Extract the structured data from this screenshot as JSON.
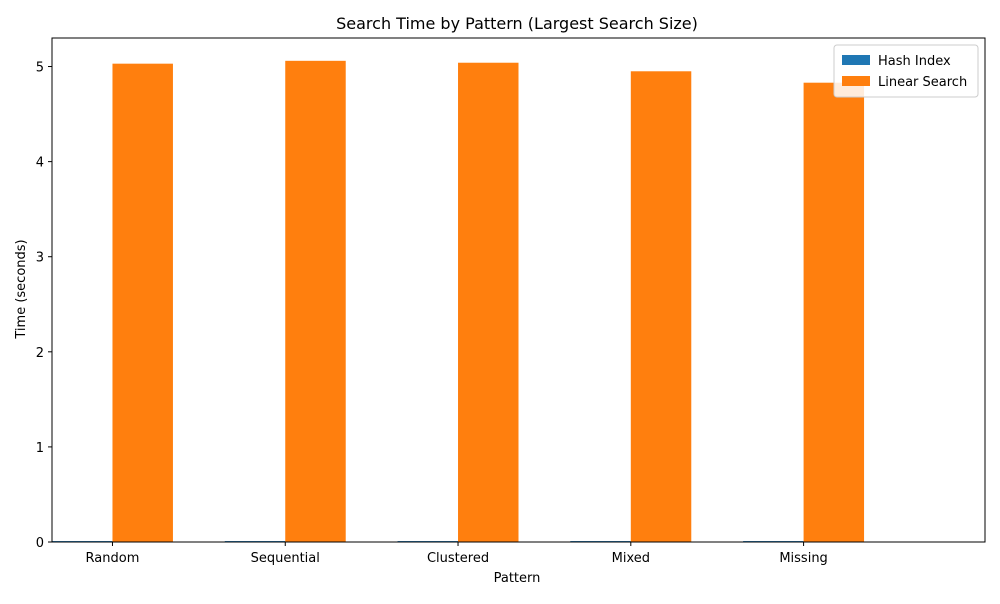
{
  "chart_data": {
    "type": "bar",
    "title": "Search Time by Pattern (Largest Search Size)",
    "xlabel": "Pattern",
    "ylabel": "Time (seconds)",
    "categories": [
      "Random",
      "Sequential",
      "Clustered",
      "Mixed",
      "Missing"
    ],
    "series": [
      {
        "name": "Hash Index",
        "color": "#1f77b4",
        "values": [
          0.01,
          0.01,
          0.01,
          0.01,
          0.01
        ]
      },
      {
        "name": "Linear Search",
        "color": "#ff7f0e",
        "values": [
          5.03,
          5.06,
          5.04,
          4.95,
          4.83
        ]
      }
    ],
    "ylim": [
      0,
      5.3
    ],
    "yticks": [
      0,
      1,
      2,
      3,
      4,
      5
    ],
    "grid": false,
    "legend_position": "top-right"
  }
}
